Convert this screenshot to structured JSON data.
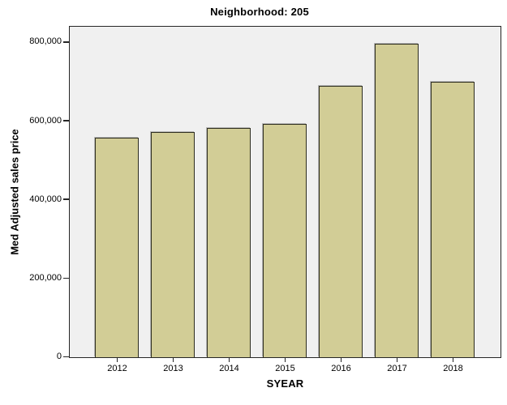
{
  "title": "Neighborhood: 205",
  "colors": {
    "bar_fill": "#d2cd96",
    "bar_border": "#2e2e20",
    "plot_background": "#f0f0f0",
    "plot_border": "#262626",
    "page_background": "#ffffff",
    "text": "#000000"
  },
  "chart_data": {
    "type": "bar",
    "title": "Neighborhood: 205",
    "xlabel": "SYEAR",
    "ylabel": "Med Adjusted sales price",
    "categories": [
      "2012",
      "2013",
      "2014",
      "2015",
      "2016",
      "2017",
      "2018"
    ],
    "values": [
      559000,
      573000,
      583000,
      592000,
      689000,
      796000,
      701000
    ],
    "y_ticks": [
      0,
      200000,
      400000,
      600000,
      800000
    ],
    "y_tick_labels": [
      "0",
      "200,000",
      "400,000",
      "600,000",
      "800,000"
    ],
    "ylim": [
      0,
      800000
    ],
    "grid": false,
    "legend": null
  }
}
